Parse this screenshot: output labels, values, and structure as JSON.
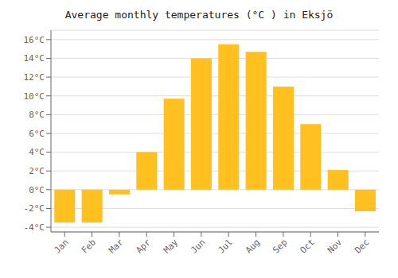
{
  "chart_data": {
    "type": "bar",
    "title": "Average monthly temperatures (°C ) in Eksjö",
    "categories": [
      "Jan",
      "Feb",
      "Mar",
      "Apr",
      "May",
      "Jun",
      "Jul",
      "Aug",
      "Sep",
      "Oct",
      "Nov",
      "Dec"
    ],
    "values": [
      -3.5,
      -3.5,
      -0.5,
      4.0,
      9.7,
      14.0,
      15.5,
      14.7,
      11.0,
      7.0,
      2.1,
      -2.3
    ],
    "color": "#FFC020",
    "ylim": [
      -4.5,
      17.0
    ],
    "yticks": [
      {
        "value": -4,
        "label": "-4°C"
      },
      {
        "value": -2,
        "label": "-2°C"
      },
      {
        "value": 0,
        "label": "0°C"
      },
      {
        "value": 2,
        "label": "2°C"
      },
      {
        "value": 4,
        "label": "4°C"
      },
      {
        "value": 6,
        "label": "6°C"
      },
      {
        "value": 8,
        "label": "8°C"
      },
      {
        "value": 10,
        "label": "10°C"
      },
      {
        "value": 12,
        "label": "12°C"
      },
      {
        "value": 14,
        "label": "14°C"
      },
      {
        "value": 16,
        "label": "16°C"
      }
    ],
    "grid": true
  }
}
